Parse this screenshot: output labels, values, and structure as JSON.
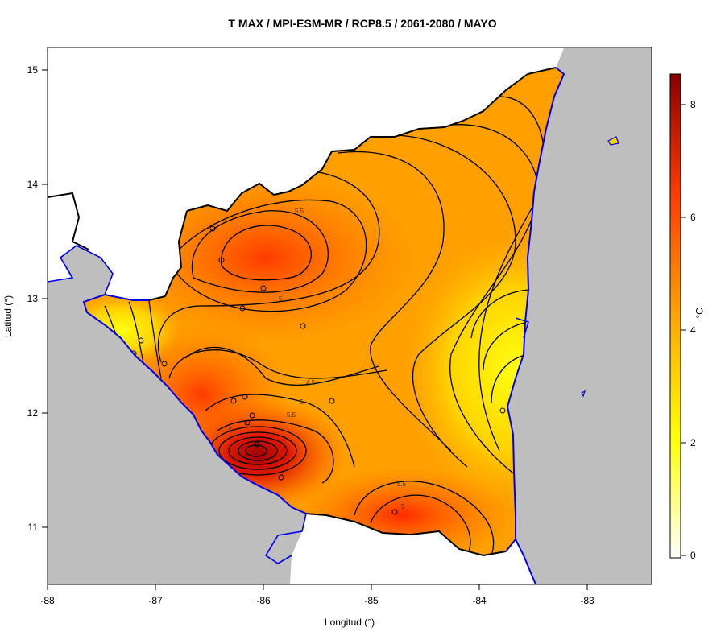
{
  "title": "T MAX / MPI-ESM-MR / RCP8.5 / 2061-2080 / MAYO",
  "xlabel": "Longitud (°)",
  "ylabel": "Latitud (°)",
  "legend_unit": "°C",
  "x_ticks": [
    "-88",
    "-87",
    "-86",
    "-85",
    "-84",
    "-83"
  ],
  "y_ticks": [
    "11",
    "12",
    "13",
    "14",
    "15"
  ],
  "colorbar_ticks": [
    "0",
    "2",
    "4",
    "6",
    "8"
  ],
  "colorbar_range": [
    -0.2,
    8.6
  ],
  "contour_labels": [
    "5.5",
    "5",
    "4.5",
    "5",
    "5.5",
    "5",
    "5.5",
    "5"
  ],
  "colors": {
    "ocean": "#bebebe",
    "coast": "#0000ee",
    "border": "#000000",
    "scale_low": "#ffffff",
    "scale_mid1": "#ffff00",
    "scale_mid2": "#ffa500",
    "scale_mid3": "#ff4500",
    "scale_high": "#8b0000"
  },
  "map_extent": {
    "lon": [
      -88,
      -82.4
    ],
    "lat": [
      10.5,
      15.2
    ]
  }
}
